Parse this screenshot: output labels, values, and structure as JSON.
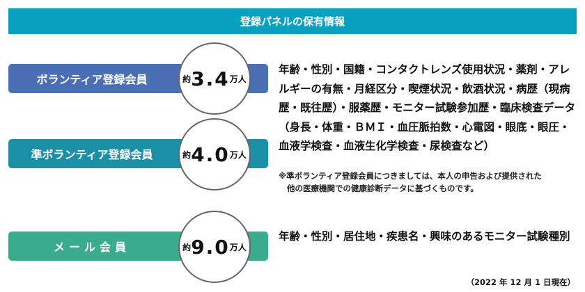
{
  "title": "登録パネルの保有情報",
  "panels": [
    {
      "label": "ボランティア登録会員",
      "prefix": "約",
      "count": "3.4",
      "unit": "万人",
      "color": "#4a6fb5"
    },
    {
      "label": "準ボランティア登録会員",
      "prefix": "約",
      "count": "4.0",
      "unit": "万人",
      "color": "#1b8fa5"
    },
    {
      "label": "メール会員",
      "prefix": "約",
      "count": "9.0",
      "unit": "万人",
      "color": "#3aab8c"
    }
  ],
  "volunteer_info": "年齢・性別・国籍・コンタクトレンズ使用状況・薬剤・アレルギーの有無・月経区分・喫煙状況・飲酒状況・病歴（現病歴・既往歴）・服薬歴・モニター試験参加歴・臨床検査データ（身長・体重・ＢＭＩ・血圧脈拍数・心電図・眼底・眼圧・血液学検査・血液生化学検査・尿検査など）",
  "note_line1": "※準ボランティア登録会員につきましては、本人の申告および提供された",
  "note_line2": "他の医療機関での健康診断データに基づくものです。",
  "mail_info": "年齢・性別・居住地・疾患名・興味のあるモニター試験種別",
  "date": "（2022 年 12 月 1 日現在）"
}
